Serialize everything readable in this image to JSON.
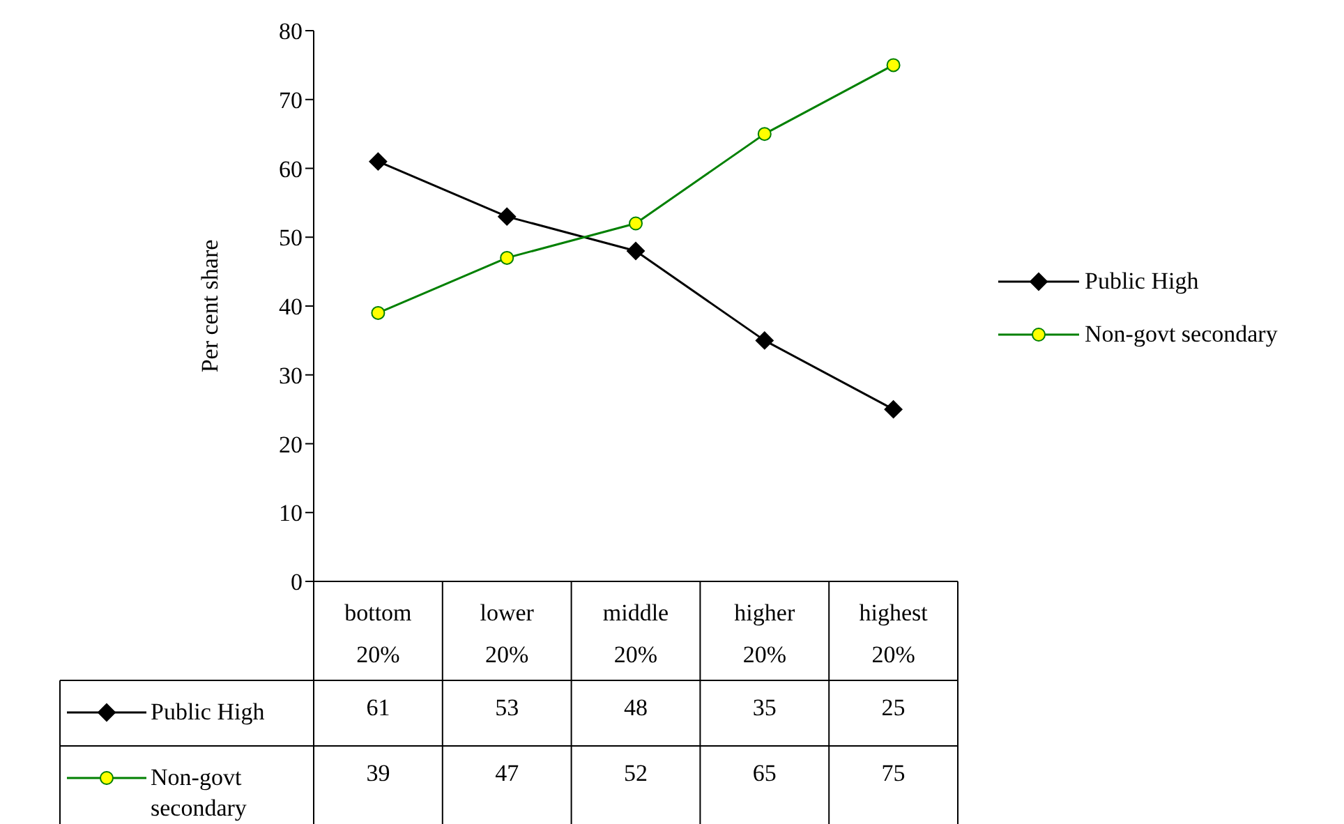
{
  "chart_data": {
    "type": "line",
    "ylabel": "Per cent share",
    "categories": [
      "bottom 20%",
      "lower 20%",
      "middle 20%",
      "higher 20%",
      "highest 20%"
    ],
    "series": [
      {
        "name": "Public High",
        "color": "#000000",
        "marker": "diamond",
        "values": [
          61,
          53,
          48,
          35,
          25
        ]
      },
      {
        "name": "Non-govt secondary",
        "color": "#008000",
        "marker": "circle",
        "values": [
          39,
          47,
          52,
          65,
          75
        ]
      }
    ],
    "ylim": [
      0,
      80
    ],
    "yticks": [
      0,
      10,
      20,
      30,
      40,
      50,
      60,
      70,
      80
    ],
    "grid": false,
    "legend": "right",
    "data_labels": true
  }
}
